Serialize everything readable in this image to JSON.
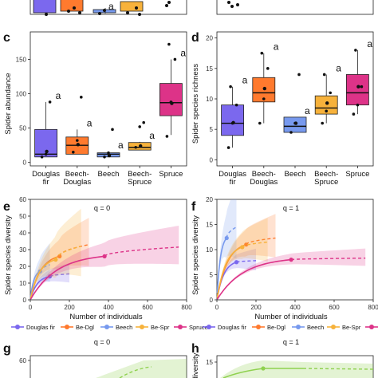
{
  "colors": {
    "douglas": "#7B68EE",
    "beech_douglas": "#FF7A2E",
    "beech": "#7799EE",
    "beech_spruce": "#F7B23B",
    "spruce": "#DD3388"
  },
  "panel_labels": [
    "c",
    "d",
    "e",
    "f",
    "g",
    "h"
  ],
  "chart_data": [
    {
      "id": "c",
      "type": "box",
      "ylabel": "Spider abundance",
      "ylim": [
        -5,
        190
      ],
      "yticks": [
        0,
        50,
        100,
        150
      ],
      "categories": [
        "Douglas\nfir",
        "Beech-\nDouglas",
        "Beech",
        "Beech-\nSpruce",
        "Spruce"
      ],
      "boxes": [
        {
          "q1": 8,
          "median": 12,
          "q3": 48,
          "lo": 8,
          "hi": 88,
          "mean": 16,
          "points": [
            8,
            12,
            88
          ]
        },
        {
          "q1": 12,
          "median": 25,
          "q3": 37,
          "lo": 12,
          "hi": 48,
          "mean": 26,
          "points": [
            15,
            32,
            95
          ]
        },
        {
          "q1": 8,
          "median": 12,
          "q3": 14,
          "lo": 8,
          "hi": 16,
          "mean": 10,
          "points": [
            8,
            14,
            48
          ]
        },
        {
          "q1": 18,
          "median": 22,
          "q3": 29,
          "lo": 18,
          "hi": 30,
          "mean": 24,
          "points": [
            22,
            52,
            58
          ]
        },
        {
          "q1": 68,
          "median": 87,
          "q3": 115,
          "lo": 40,
          "hi": 150,
          "mean": 86,
          "points": [
            38,
            88,
            150,
            172
          ]
        }
      ],
      "letters": [
        "a",
        "a",
        "a",
        "a",
        "a"
      ]
    },
    {
      "id": "d",
      "type": "box",
      "ylabel": "Spider species richness",
      "ylim": [
        -1,
        21
      ],
      "yticks": [
        0,
        5,
        10,
        15,
        20
      ],
      "categories": [
        "Douglas\nfir",
        "Beech-\nDouglas",
        "Beech",
        "Beech-\nSpruce",
        "Spruce"
      ],
      "boxes": [
        {
          "q1": 4,
          "median": 6,
          "q3": 9,
          "lo": 2,
          "hi": 12,
          "mean": 6.1,
          "points": [
            2,
            6,
            9,
            12
          ]
        },
        {
          "q1": 9.5,
          "median": 11,
          "q3": 13.5,
          "lo": 6,
          "hi": 17.5,
          "mean": 11.7,
          "points": [
            6,
            10,
            15,
            17.5
          ]
        },
        {
          "q1": 4.5,
          "median": 5.5,
          "q3": 7,
          "lo": 4.5,
          "hi": 7,
          "mean": 6,
          "points": [
            4.5,
            6,
            14
          ]
        },
        {
          "q1": 7.5,
          "median": 8.5,
          "q3": 10.5,
          "lo": 6,
          "hi": 14,
          "mean": 9.3,
          "points": [
            6,
            8,
            11,
            14
          ]
        },
        {
          "q1": 9,
          "median": 11,
          "q3": 14,
          "lo": 7.5,
          "hi": 18,
          "mean": 12,
          "points": [
            7.5,
            9,
            12,
            18
          ]
        }
      ],
      "letters": [
        "a",
        "a",
        "a",
        "a",
        "a"
      ]
    },
    {
      "id": "e",
      "type": "line",
      "title": "q = 0",
      "xlabel": "Number of individuals",
      "ylabel": "Spider species diversity",
      "xlim": [
        0,
        800
      ],
      "ylim": [
        0,
        60
      ],
      "xticks": [
        0,
        200,
        400,
        600,
        800
      ],
      "yticks": [
        0,
        10,
        20,
        30,
        40,
        50,
        60
      ],
      "series": [
        {
          "name": "Douglas fir",
          "key": "douglas",
          "obs_x": 100,
          "obs_y": 14,
          "end_x": 200,
          "end_y": 15.5,
          "band": 4
        },
        {
          "name": "Be-Dgl",
          "key": "beech_douglas",
          "obs_x": 150,
          "obs_y": 26,
          "end_x": 300,
          "end_y": 33,
          "band": 10
        },
        {
          "name": "Beech",
          "key": "beech",
          "obs_x": 50,
          "obs_y": 17,
          "end_x": 100,
          "end_y": 21,
          "band": 8
        },
        {
          "name": "Be-Spr",
          "key": "beech_spruce",
          "obs_x": 130,
          "obs_y": 24,
          "end_x": 260,
          "end_y": 32,
          "band": 14
        },
        {
          "name": "Spruce",
          "key": "spruce",
          "obs_x": 380,
          "obs_y": 26,
          "end_x": 760,
          "end_y": 31.5,
          "band": 8
        }
      ]
    },
    {
      "id": "f",
      "type": "line",
      "title": "q = 1",
      "xlabel": "Number of individuals",
      "ylabel": "Spider species diversity",
      "xlim": [
        0,
        800
      ],
      "ylim": [
        0,
        20
      ],
      "xticks": [
        0,
        200,
        400,
        600,
        800
      ],
      "yticks": [
        0,
        5,
        10,
        15,
        20
      ],
      "series": [
        {
          "name": "Douglas fir",
          "key": "douglas",
          "obs_x": 100,
          "obs_y": 7.5,
          "end_x": 200,
          "end_y": 7.8,
          "band": 1.5
        },
        {
          "name": "Be-Dgl",
          "key": "beech_douglas",
          "obs_x": 150,
          "obs_y": 11,
          "end_x": 300,
          "end_y": 12.3,
          "band": 3
        },
        {
          "name": "Beech",
          "key": "beech",
          "obs_x": 50,
          "obs_y": 12.3,
          "end_x": 100,
          "end_y": 14.5,
          "band": 5
        },
        {
          "name": "Be-Spr",
          "key": "beech_spruce",
          "obs_x": 130,
          "obs_y": 10.5,
          "end_x": 260,
          "end_y": 11.5,
          "band": 3
        },
        {
          "name": "Spruce",
          "key": "spruce",
          "obs_x": 380,
          "obs_y": 8,
          "end_x": 760,
          "end_y": 8.3,
          "band": 1.2
        }
      ]
    },
    {
      "id": "g",
      "type": "line",
      "title": "q = 0",
      "ylabel": "",
      "yticks": [
        60
      ]
    },
    {
      "id": "h",
      "type": "line",
      "title": "q = 1",
      "ylabel": "diversity",
      "yticks": [
        15
      ]
    }
  ],
  "legend": {
    "items": [
      {
        "label": "Douglas fir",
        "key": "douglas"
      },
      {
        "label": "Be-Dgl",
        "key": "beech_douglas"
      },
      {
        "label": "Beech",
        "key": "beech"
      },
      {
        "label": "Be-Spr",
        "key": "beech_spruce"
      },
      {
        "label": "Spruce",
        "key": "spruce"
      }
    ]
  }
}
